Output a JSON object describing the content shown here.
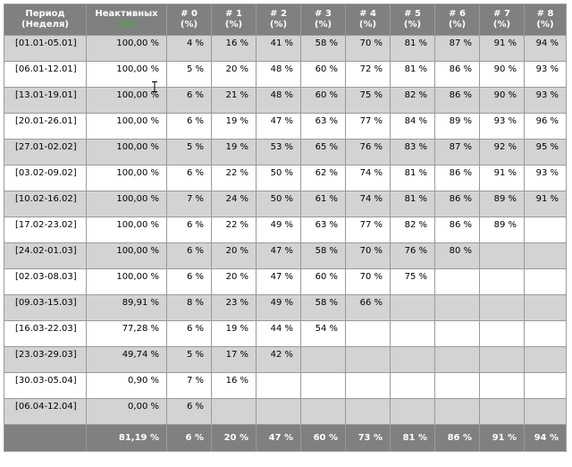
{
  "header": {
    "period_line1": "Период",
    "period_line2": "(Неделя)",
    "inactive_line1": "Неактивных",
    "inactive_line2": "(%)",
    "cols": [
      {
        "l1": "# 0",
        "l2": "(%)"
      },
      {
        "l1": "# 1",
        "l2": "(%)"
      },
      {
        "l1": "# 2",
        "l2": "(%)"
      },
      {
        "l1": "# 3",
        "l2": "(%)"
      },
      {
        "l1": "# 4",
        "l2": "(%)"
      },
      {
        "l1": "# 5",
        "l2": "(%)"
      },
      {
        "l1": "# 6",
        "l2": "(%)"
      },
      {
        "l1": "# 7",
        "l2": "(%)"
      },
      {
        "l1": "# 8",
        "l2": "(%)"
      }
    ]
  },
  "rows": [
    {
      "period": "[01.01-05.01]",
      "inactive": "100,00 %",
      "vals": [
        "4 %",
        "16 %",
        "41 %",
        "58 %",
        "70 %",
        "81 %",
        "87 %",
        "91 %",
        "94 %"
      ]
    },
    {
      "period": "[06.01-12.01]",
      "inactive": "100,00 %",
      "vals": [
        "5 %",
        "20 %",
        "48 %",
        "60 %",
        "72 %",
        "81 %",
        "86 %",
        "90 %",
        "93 %"
      ]
    },
    {
      "period": "[13.01-19.01]",
      "inactive": "100,00 %",
      "vals": [
        "6 %",
        "21 %",
        "48 %",
        "60 %",
        "75 %",
        "82 %",
        "86 %",
        "90 %",
        "93 %"
      ]
    },
    {
      "period": "[20.01-26.01]",
      "inactive": "100,00 %",
      "vals": [
        "6 %",
        "19 %",
        "47 %",
        "63 %",
        "77 %",
        "84 %",
        "89 %",
        "93 %",
        "96 %"
      ]
    },
    {
      "period": "[27.01-02.02]",
      "inactive": "100,00 %",
      "vals": [
        "5 %",
        "19 %",
        "53 %",
        "65 %",
        "76 %",
        "83 %",
        "87 %",
        "92 %",
        "95 %"
      ]
    },
    {
      "period": "[03.02-09.02]",
      "inactive": "100,00 %",
      "vals": [
        "6 %",
        "22 %",
        "50 %",
        "62 %",
        "74 %",
        "81 %",
        "86 %",
        "91 %",
        "93 %"
      ]
    },
    {
      "period": "[10.02-16.02]",
      "inactive": "100,00 %",
      "vals": [
        "7 %",
        "24 %",
        "50 %",
        "61 %",
        "74 %",
        "81 %",
        "86 %",
        "89 %",
        "91 %"
      ]
    },
    {
      "period": "[17.02-23.02]",
      "inactive": "100,00 %",
      "vals": [
        "6 %",
        "22 %",
        "49 %",
        "63 %",
        "77 %",
        "82 %",
        "86 %",
        "89 %",
        ""
      ]
    },
    {
      "period": "[24.02-01.03]",
      "inactive": "100,00 %",
      "vals": [
        "6 %",
        "20 %",
        "47 %",
        "58 %",
        "70 %",
        "76 %",
        "80 %",
        "",
        ""
      ]
    },
    {
      "period": "[02.03-08.03]",
      "inactive": "100,00 %",
      "vals": [
        "6 %",
        "20 %",
        "47 %",
        "60 %",
        "70 %",
        "75 %",
        "",
        "",
        ""
      ]
    },
    {
      "period": "[09.03-15.03]",
      "inactive": "89,91 %",
      "vals": [
        "8 %",
        "23 %",
        "49 %",
        "58 %",
        "66 %",
        "",
        "",
        "",
        ""
      ]
    },
    {
      "period": "[16.03-22.03]",
      "inactive": "77,28 %",
      "vals": [
        "6 %",
        "19 %",
        "44 %",
        "54 %",
        "",
        "",
        "",
        "",
        ""
      ]
    },
    {
      "period": "[23.03-29.03]",
      "inactive": "49,74 %",
      "vals": [
        "5 %",
        "17 %",
        "42 %",
        "",
        "",
        "",
        "",
        "",
        ""
      ]
    },
    {
      "period": "[30.03-05.04]",
      "inactive": "0,90 %",
      "vals": [
        "7 %",
        "16 %",
        "",
        "",
        "",
        "",
        "",
        "",
        ""
      ]
    },
    {
      "period": "[06.04-12.04]",
      "inactive": "0,00 %",
      "vals": [
        "6 %",
        "",
        "",
        "",
        "",
        "",
        "",
        "",
        ""
      ]
    }
  ],
  "footer": {
    "period": "",
    "inactive": "81,19 %",
    "vals": [
      "6 %",
      "20 %",
      "47 %",
      "60 %",
      "73 %",
      "81 %",
      "86 %",
      "91 %",
      "94 %"
    ]
  }
}
